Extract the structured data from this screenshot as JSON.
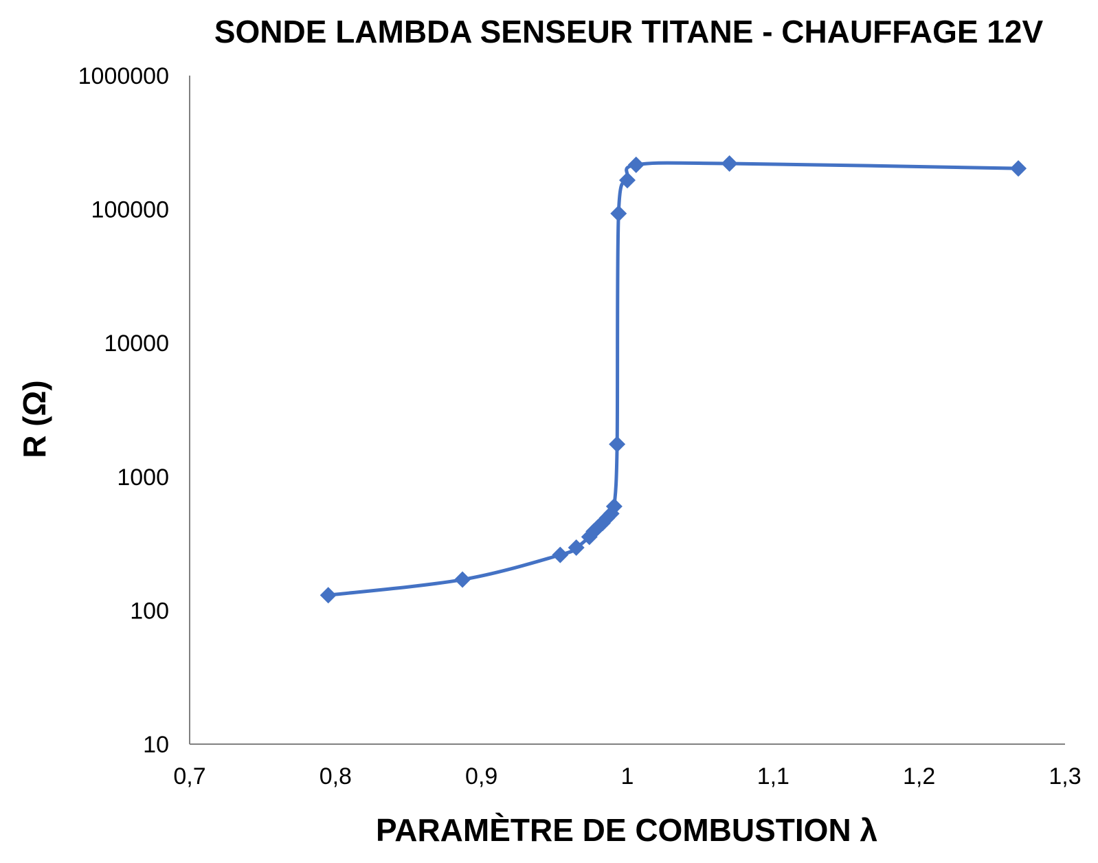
{
  "chart_data": {
    "type": "line",
    "title": "SONDE LAMBDA SENSEUR TITANE - CHAUFFAGE 12V",
    "xlabel": "PARAMÈTRE DE COMBUSTION λ",
    "ylabel": "R (Ω)",
    "xlim": [
      0.7,
      1.3
    ],
    "ylim": [
      10,
      1000000
    ],
    "yscale": "log",
    "grid": false,
    "x_ticks": [
      0.7,
      0.8,
      0.9,
      1.0,
      1.1,
      1.2,
      1.3
    ],
    "x_tick_labels": [
      "0,7",
      "0,8",
      "0,9",
      "1",
      "1,1",
      "1,2",
      "1,3"
    ],
    "y_ticks": [
      10,
      100,
      1000,
      10000,
      100000,
      1000000
    ],
    "y_tick_labels": [
      "10",
      "100",
      "1000",
      "10000",
      "100000",
      "1000000"
    ],
    "series": [
      {
        "color": "#4472c4",
        "marker": "diamond",
        "x": [
          0.795,
          0.887,
          0.954,
          0.965,
          0.974,
          0.977,
          0.98,
          0.983,
          0.986,
          0.989,
          0.991,
          0.993,
          0.994,
          1.0,
          1.006,
          1.07,
          1.268
        ],
        "y": [
          130,
          170,
          260,
          295,
          355,
          390,
          420,
          450,
          490,
          530,
          600,
          1750,
          93000,
          165000,
          215000,
          220000,
          202000
        ]
      }
    ]
  }
}
